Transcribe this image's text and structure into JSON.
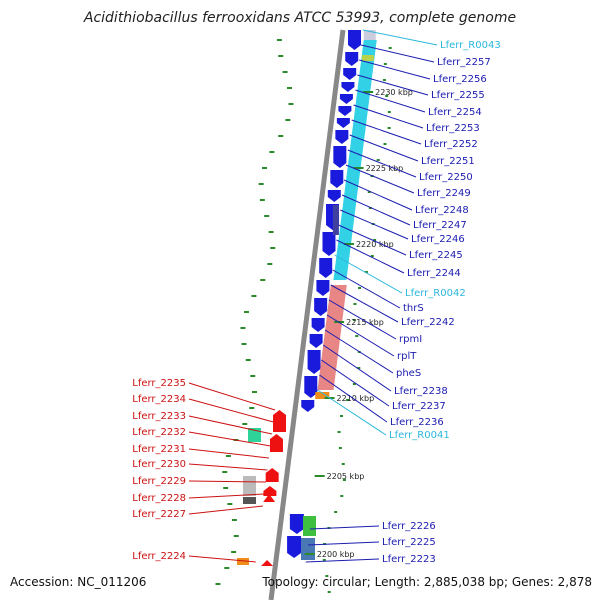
{
  "title": "Acidithiobacillus ferrooxidans ATCC 53993, complete genome",
  "footer": {
    "accession": "Accession: NC_011206",
    "summary": "Topology: circular; Length: 2,885,038 bp; Genes: 2,878"
  },
  "colors": {
    "forward_cds": "#1a1adc",
    "rna": "#33d1e5",
    "reverse_cds": "#ee1111",
    "label_blue": "#1c1cb0",
    "label_cyan": "#2bb8dd",
    "label_red": "#cc1111",
    "backbone": "#888888",
    "gc_tick": "#2a8a2a"
  },
  "ruler_labels": [
    "2230 kbp",
    "2225 kbp",
    "2220 kbp",
    "2215 kbp",
    "2210 kbp",
    "2205 kbp",
    "2200 kbp"
  ],
  "right_labels": [
    {
      "text": "Lferr_R0043",
      "tone": "cyan"
    },
    {
      "text": "Lferr_2257",
      "tone": "blue"
    },
    {
      "text": "Lferr_2256",
      "tone": "blue"
    },
    {
      "text": "Lferr_2255",
      "tone": "blue"
    },
    {
      "text": "Lferr_2254",
      "tone": "blue"
    },
    {
      "text": "Lferr_2253",
      "tone": "blue"
    },
    {
      "text": "Lferr_2252",
      "tone": "blue"
    },
    {
      "text": "Lferr_2251",
      "tone": "blue"
    },
    {
      "text": "Lferr_2250",
      "tone": "blue"
    },
    {
      "text": "Lferr_2249",
      "tone": "blue"
    },
    {
      "text": "Lferr_2248",
      "tone": "blue"
    },
    {
      "text": "Lferr_2247",
      "tone": "blue"
    },
    {
      "text": "Lferr_2246",
      "tone": "blue"
    },
    {
      "text": "Lferr_2245",
      "tone": "blue"
    },
    {
      "text": "Lferr_2244",
      "tone": "blue"
    },
    {
      "text": "Lferr_R0042",
      "tone": "cyan"
    },
    {
      "text": "thrS",
      "tone": "blue"
    },
    {
      "text": "Lferr_2242",
      "tone": "blue"
    },
    {
      "text": "rpmI",
      "tone": "blue"
    },
    {
      "text": "rplT",
      "tone": "blue"
    },
    {
      "text": "pheS",
      "tone": "blue"
    },
    {
      "text": "Lferr_2238",
      "tone": "blue"
    },
    {
      "text": "Lferr_2237",
      "tone": "blue"
    },
    {
      "text": "Lferr_2236",
      "tone": "blue"
    },
    {
      "text": "Lferr_R0041",
      "tone": "cyan"
    },
    {
      "text": "Lferr_2226",
      "tone": "blue"
    },
    {
      "text": "Lferr_2225",
      "tone": "blue"
    },
    {
      "text": "Lferr_2223",
      "tone": "blue"
    }
  ],
  "left_labels": [
    {
      "text": "Lferr_2235"
    },
    {
      "text": "Lferr_2234"
    },
    {
      "text": "Lferr_2233"
    },
    {
      "text": "Lferr_2232"
    },
    {
      "text": "Lferr_2231"
    },
    {
      "text": "Lferr_2230"
    },
    {
      "text": "Lferr_2229"
    },
    {
      "text": "Lferr_2228"
    },
    {
      "text": "Lferr_2227"
    },
    {
      "text": "Lferr_2224"
    }
  ]
}
